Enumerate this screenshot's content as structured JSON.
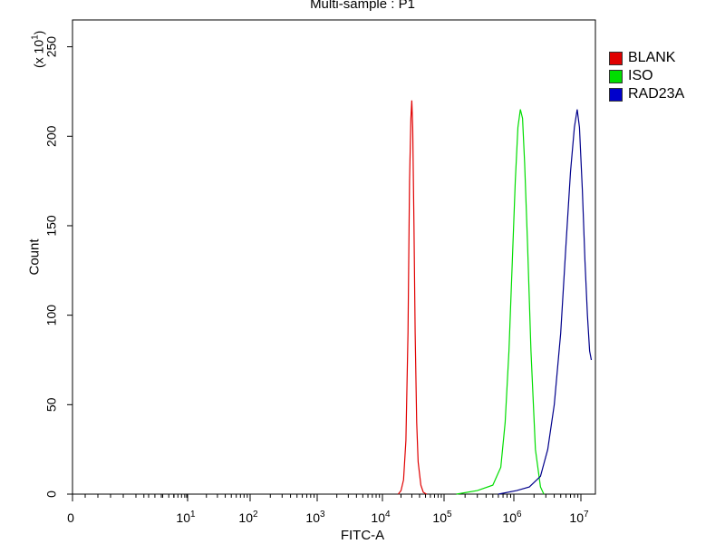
{
  "chart_data": {
    "type": "line",
    "title": "Multi-sample : P1",
    "xlabel": "FITC-A",
    "ylabel": "Count",
    "y_scale_note": "(x 10",
    "y_scale_exp": "1",
    "x_scale": "log",
    "xlim": [
      0,
      10000000
    ],
    "ylim": [
      0,
      265
    ],
    "y_ticks": [
      0,
      50,
      100,
      150,
      200,
      250
    ],
    "x_ticks": [
      {
        "value": 0,
        "base": "0",
        "exp": ""
      },
      {
        "value": 10,
        "base": "10",
        "exp": "1"
      },
      {
        "value": 100,
        "base": "10",
        "exp": "2"
      },
      {
        "value": 1000,
        "base": "10",
        "exp": "3"
      },
      {
        "value": 10000,
        "base": "10",
        "exp": "4"
      },
      {
        "value": 100000,
        "base": "10",
        "exp": "5"
      },
      {
        "value": 1000000,
        "base": "10",
        "exp": "6"
      },
      {
        "value": 10000000,
        "base": "10",
        "exp": "7"
      }
    ],
    "legend_position": "top-right",
    "series": [
      {
        "name": "BLANK",
        "color": "#e00000",
        "x": [
          18000,
          20000,
          22000,
          24000,
          26000,
          27500,
          29000,
          30000,
          31000,
          32500,
          34000,
          36000,
          38000,
          42000,
          46000,
          52000
        ],
        "y": [
          0,
          2,
          8,
          30,
          90,
          175,
          210,
          220,
          205,
          150,
          90,
          40,
          18,
          5,
          1,
          0
        ]
      },
      {
        "name": "ISO",
        "color": "#00dd00",
        "x": [
          150000,
          300000,
          500000,
          650000,
          750000,
          850000,
          950000,
          1050000,
          1150000,
          1250000,
          1350000,
          1450000,
          1600000,
          1800000,
          2100000,
          2500000,
          2800000
        ],
        "y": [
          0,
          2,
          5,
          15,
          40,
          80,
          130,
          175,
          205,
          215,
          210,
          185,
          140,
          80,
          25,
          4,
          0
        ]
      },
      {
        "name": "RAD23A",
        "color": "#00008b",
        "x": [
          600000,
          1100000,
          1700000,
          2500000,
          3200000,
          4000000,
          5000000,
          6000000,
          7000000,
          8000000,
          8800000,
          9500000,
          10500000,
          11500000,
          12500000,
          13500000,
          14300000
        ],
        "y": [
          0,
          2,
          4,
          10,
          25,
          50,
          90,
          140,
          180,
          205,
          215,
          205,
          170,
          130,
          100,
          80,
          75
        ]
      }
    ]
  }
}
